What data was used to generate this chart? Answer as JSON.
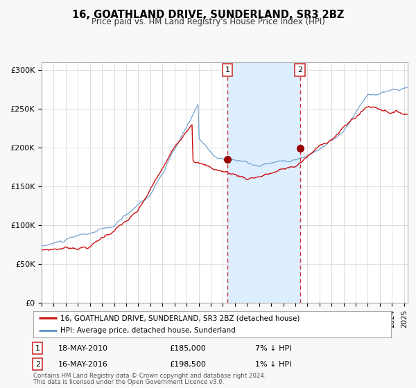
{
  "title": "16, GOATHLAND DRIVE, SUNDERLAND, SR3 2BZ",
  "subtitle": "Price paid vs. HM Land Registry's House Price Index (HPI)",
  "ylim": [
    0,
    310000
  ],
  "yticks": [
    0,
    50000,
    100000,
    150000,
    200000,
    250000,
    300000
  ],
  "ytick_labels": [
    "£0",
    "£50K",
    "£100K",
    "£150K",
    "£200K",
    "£250K",
    "£300K"
  ],
  "xlim_start": 1995.0,
  "xlim_end": 2025.3,
  "sale1_x": 2010.38,
  "sale1_y": 185000,
  "sale1_label": "18-MAY-2010",
  "sale1_price": "£185,000",
  "sale1_hpi": "7% ↓ HPI",
  "sale2_x": 2016.38,
  "sale2_y": 198500,
  "sale2_label": "16-MAY-2016",
  "sale2_price": "£198,500",
  "sale2_hpi": "1% ↓ HPI",
  "shade_color": "#ddeeff",
  "line_color_red": "#cc1111",
  "line_color_blue": "#6699cc",
  "dot_color": "#990000",
  "vline_color": "#cc3333",
  "legend_line1": "16, GOATHLAND DRIVE, SUNDERLAND, SR3 2BZ (detached house)",
  "legend_line2": "HPI: Average price, detached house, Sunderland",
  "footnote1": "Contains HM Land Registry data © Crown copyright and database right 2024.",
  "footnote2": "This data is licensed under the Open Government Licence v3.0.",
  "bg_color": "#f8f8f8",
  "plot_bg_color": "#ffffff",
  "grid_color": "#dddddd"
}
